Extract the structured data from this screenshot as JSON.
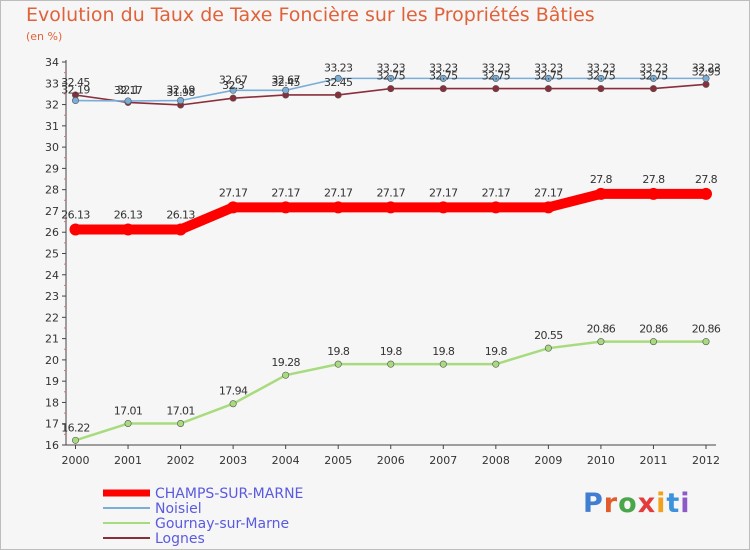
{
  "title": "Evolution du Taux de Taxe Foncière sur les Propriétés Bâties",
  "unit": "(en %)",
  "logo_text": "Proxiti",
  "logo_colors": [
    "#3f7ed1",
    "#e25b2b",
    "#4aa64a",
    "#e33c3c",
    "#f0a21a",
    "#3c92dd",
    "#8c5bc7"
  ],
  "chart_data": {
    "type": "line",
    "title": "Evolution du Taux de Taxe Foncière sur les Propriétés Bâties",
    "ylabel": "(en %)",
    "xlabel": "",
    "x": [
      2000,
      2001,
      2002,
      2003,
      2004,
      2005,
      2006,
      2007,
      2008,
      2009,
      2010,
      2011,
      2012
    ],
    "ylim": [
      16,
      34
    ],
    "yticks": [
      16,
      17,
      18,
      19,
      20,
      21,
      22,
      23,
      24,
      25,
      26,
      27,
      28,
      29,
      30,
      31,
      32,
      33,
      34
    ],
    "grid": false,
    "legend_position": "bottom-left",
    "series": [
      {
        "name": "CHAMPS-SUR-MARNE",
        "color": "#ff0000",
        "values": [
          26.13,
          26.13,
          26.13,
          27.17,
          27.17,
          27.17,
          27.17,
          27.17,
          27.17,
          27.17,
          27.8,
          27.8,
          27.8
        ],
        "labels": [
          "26.13",
          "26.13",
          "26.13",
          "27.17",
          "27.17",
          "27.17",
          "27.17",
          "27.17",
          "27.17",
          "27.17",
          "27.8",
          "27.8",
          "27.8"
        ]
      },
      {
        "name": "Noisiel",
        "color": "#7aaed8",
        "values": [
          32.19,
          32.17,
          32.19,
          32.67,
          32.67,
          33.23,
          33.23,
          33.23,
          33.23,
          33.23,
          33.23,
          33.23,
          33.23
        ],
        "labels": [
          "32.19",
          "32.17",
          "32.19",
          "32.67",
          "32.67",
          "33.23",
          "33.23",
          "33.23",
          "33.23",
          "33.23",
          "33.23",
          "33.23",
          "33.23"
        ]
      },
      {
        "name": "Gournay-sur-Marne",
        "color": "#a8db7e",
        "values": [
          16.22,
          17.01,
          17.01,
          17.94,
          19.28,
          19.8,
          19.8,
          19.8,
          19.8,
          20.55,
          20.86,
          20.86,
          20.86
        ],
        "labels": [
          "16.22",
          "17.01",
          "17.01",
          "17.94",
          "19.28",
          "19.8",
          "19.8",
          "19.8",
          "19.8",
          "20.55",
          "20.86",
          "20.86",
          "20.86"
        ]
      },
      {
        "name": "Lognes",
        "color": "#8a2e3c",
        "values": [
          32.45,
          32.1,
          31.98,
          32.3,
          32.45,
          32.45,
          32.75,
          32.75,
          32.75,
          32.75,
          32.75,
          32.75,
          32.95
        ],
        "labels": [
          "32.45",
          "32.1",
          "31.98",
          "32.3",
          "32.45",
          "32.45",
          "32.75",
          "32.75",
          "32.75",
          "32.75",
          "32.75",
          "32.75",
          "32.95"
        ]
      }
    ]
  }
}
